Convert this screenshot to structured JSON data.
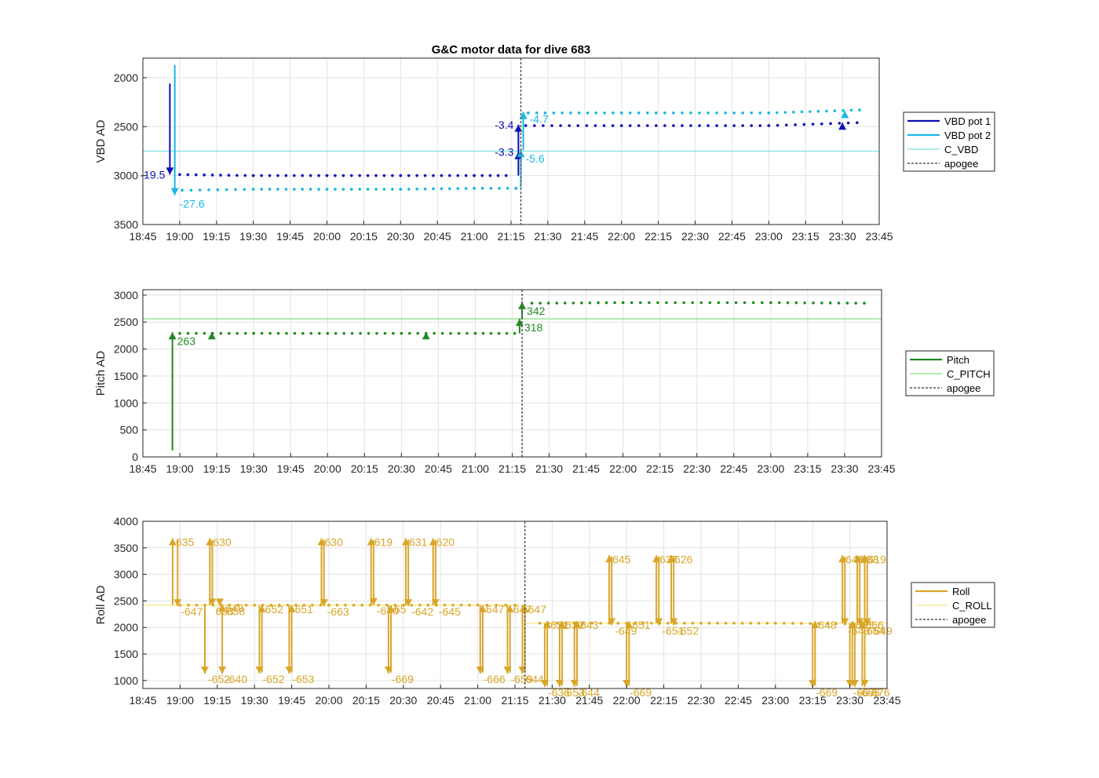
{
  "title": "G&C motor data for dive 683",
  "colors": {
    "vbd1": "#0d0fb3",
    "vbd2": "#1ab6e6",
    "c_vbd": "#7fe3e0",
    "pitch": "#1f8a1f",
    "c_pitch": "#7fe07f",
    "roll": "#d9a62a",
    "c_roll": "#f7e680",
    "apogee": "#555555",
    "grid": "#e3e3e3"
  },
  "x_ticks": [
    "18:45",
    "19:00",
    "19:15",
    "19:30",
    "19:45",
    "20:00",
    "20:15",
    "20:30",
    "20:45",
    "21:00",
    "21:15",
    "21:30",
    "21:45",
    "22:00",
    "22:15",
    "22:30",
    "22:45",
    "23:00",
    "23:15",
    "23:30",
    "23:45"
  ],
  "chart_data": [
    {
      "type": "line",
      "ylabel": "VBD AD",
      "xlim": [
        "18:45",
        "23:45"
      ],
      "ylim": [
        1800,
        3500
      ],
      "y_reversed": true,
      "yticks": [
        2000,
        2500,
        3000,
        3500
      ],
      "legend": [
        "VBD pot 1",
        "VBD pot 2",
        "C_VBD",
        "apogee"
      ],
      "legend_position": "outside-right",
      "apogee": "21:19",
      "c_vbd": 2750,
      "series": [
        {
          "name": "VBD pot 1",
          "color": "vbd1",
          "dots": [
            [
              "19:00",
              2990
            ],
            [
              "19:30",
              3000
            ],
            [
              "20:00",
              3000
            ],
            [
              "20:30",
              3000
            ],
            [
              "21:00",
              3000
            ],
            [
              "21:13",
              3000
            ],
            [
              "21:21",
              2490
            ],
            [
              "22:00",
              2490
            ],
            [
              "23:00",
              2490
            ],
            [
              "23:36",
              2460
            ]
          ]
        },
        {
          "name": "VBD pot 2",
          "color": "vbd2",
          "dots": [
            [
              "19:01",
              3150
            ],
            [
              "19:30",
              3140
            ],
            [
              "20:00",
              3140
            ],
            [
              "20:30",
              3140
            ],
            [
              "21:00",
              3130
            ],
            [
              "21:17",
              3130
            ],
            [
              "21:22",
              2360
            ],
            [
              "22:00",
              2360
            ],
            [
              "23:00",
              2360
            ],
            [
              "23:37",
              2330
            ]
          ]
        }
      ],
      "arrows": [
        {
          "series": "vbd1",
          "x": "18:56",
          "from": 2060,
          "to": 2990,
          "label": "-19.5",
          "label_side": "left"
        },
        {
          "series": "vbd2",
          "x": "18:58",
          "from": 1870,
          "to": 3200,
          "label": "-27.6",
          "label_side": "below-right"
        },
        {
          "series": "vbd1",
          "x": "21:18",
          "from": 3000,
          "to": 2760,
          "label": "-3.3",
          "label_side": "left"
        },
        {
          "series": "vbd1",
          "x": "21:18",
          "from": 2760,
          "to": 2480,
          "label": "-3.4",
          "label_side": "left"
        },
        {
          "series": "vbd2",
          "x": "21:19",
          "from": 3120,
          "to": 2740,
          "label": "-5.6",
          "label_side": "below-right"
        },
        {
          "series": "vbd2",
          "x": "21:20",
          "from": 2740,
          "to": 2350,
          "label": "-4.7",
          "label_side": "right"
        },
        {
          "series": "vbd1",
          "x": "23:30",
          "from": 2480,
          "to": 2460,
          "label": "",
          "label_side": "none"
        },
        {
          "series": "vbd2",
          "x": "23:31",
          "from": 2380,
          "to": 2340,
          "label": "",
          "label_side": "none"
        }
      ]
    },
    {
      "type": "line",
      "ylabel": "Pitch AD",
      "xlim": [
        "18:45",
        "23:45"
      ],
      "ylim": [
        0,
        3100
      ],
      "yticks": [
        0,
        500,
        1000,
        1500,
        2000,
        2500,
        3000
      ],
      "legend": [
        "Pitch",
        "C_PITCH",
        "apogee"
      ],
      "legend_position": "outside-right",
      "apogee": "21:19",
      "c_pitch": 2560,
      "series": [
        {
          "name": "Pitch",
          "color": "pitch",
          "dots": [
            [
              "19:00",
              2290
            ],
            [
              "19:30",
              2290
            ],
            [
              "20:00",
              2290
            ],
            [
              "20:30",
              2290
            ],
            [
              "21:00",
              2290
            ],
            [
              "21:16",
              2290
            ],
            [
              "21:23",
              2850
            ],
            [
              "22:00",
              2860
            ],
            [
              "23:00",
              2860
            ],
            [
              "23:38",
              2850
            ]
          ]
        }
      ],
      "arrows": [
        {
          "series": "pitch",
          "x": "18:57",
          "from": 120,
          "to": 2310,
          "label": "263",
          "label_side": "below-right"
        },
        {
          "series": "pitch",
          "x": "19:13",
          "from": 2280,
          "to": 2310,
          "label": "",
          "label_side": "none"
        },
        {
          "series": "pitch",
          "x": "20:40",
          "from": 2280,
          "to": 2310,
          "label": "",
          "label_side": "none"
        },
        {
          "series": "pitch",
          "x": "21:18",
          "from": 2290,
          "to": 2560,
          "label": "318",
          "label_side": "below-right"
        },
        {
          "series": "pitch",
          "x": "21:19",
          "from": 2560,
          "to": 2870,
          "label": "342",
          "label_side": "below-right"
        }
      ]
    },
    {
      "type": "line",
      "ylabel": "Roll AD",
      "xlim": [
        "18:45",
        "23:45"
      ],
      "ylim": [
        850,
        4000
      ],
      "yticks": [
        1000,
        1500,
        2000,
        2500,
        3000,
        3500,
        4000
      ],
      "legend": [
        "Roll",
        "C_ROLL",
        "apogee"
      ],
      "legend_position": "outside-right",
      "apogee": "21:19",
      "c_roll_segments": [
        [
          "18:45",
          "21:19",
          2420
        ],
        [
          "21:19",
          "23:45",
          2080
        ]
      ],
      "series": [
        {
          "name": "Roll",
          "color": "roll",
          "dots": [
            [
              "19:00",
              2420
            ],
            [
              "19:30",
              2420
            ],
            [
              "20:00",
              2420
            ],
            [
              "20:30",
              2420
            ],
            [
              "21:00",
              2420
            ],
            [
              "21:15",
              2420
            ],
            [
              "21:25",
              2080
            ],
            [
              "22:00",
              2080
            ],
            [
              "22:30",
              2080
            ],
            [
              "23:00",
              2080
            ],
            [
              "23:35",
              2070
            ]
          ]
        }
      ],
      "arrows": [
        {
          "x": "18:57",
          "from": 2420,
          "to": 3680,
          "label": "635"
        },
        {
          "x": "18:59",
          "from": 3650,
          "to": 2400,
          "label": "-647"
        },
        {
          "x": "19:10",
          "from": 2420,
          "to": 1130,
          "label": "-652"
        },
        {
          "x": "19:12",
          "from": 2420,
          "to": 3680,
          "label": "630"
        },
        {
          "x": "19:13",
          "from": 3650,
          "to": 2410,
          "label": "653"
        },
        {
          "x": "19:17",
          "from": 2420,
          "to": 1130,
          "label": "-640"
        },
        {
          "x": "19:17",
          "from": 2400,
          "to": 2440,
          "label": "648"
        },
        {
          "x": "19:16",
          "from": 2420,
          "to": 2410,
          "label": "-658"
        },
        {
          "x": "19:32",
          "from": 2420,
          "to": 1130,
          "label": "-652"
        },
        {
          "x": "19:33",
          "from": 1150,
          "to": 2420,
          "label": "652"
        },
        {
          "x": "19:44",
          "from": 2420,
          "to": 1130,
          "label": "-653"
        },
        {
          "x": "19:45",
          "from": 1150,
          "to": 2420,
          "label": "651"
        },
        {
          "x": "19:57",
          "from": 2420,
          "to": 3680,
          "label": "630"
        },
        {
          "x": "19:58",
          "from": 3650,
          "to": 2400,
          "label": "-663"
        },
        {
          "x": "20:17",
          "from": 2420,
          "to": 3680,
          "label": "619"
        },
        {
          "x": "20:18",
          "from": 3650,
          "to": 2420,
          "label": "-640"
        },
        {
          "x": "20:24",
          "from": 2420,
          "to": 1130,
          "label": "-669"
        },
        {
          "x": "20:25",
          "from": 1150,
          "to": 2420,
          "label": "65"
        },
        {
          "x": "20:31",
          "from": 2420,
          "to": 3680,
          "label": "631"
        },
        {
          "x": "20:32",
          "from": 3650,
          "to": 2400,
          "label": "-642"
        },
        {
          "x": "20:42",
          "from": 2420,
          "to": 3680,
          "label": "620"
        },
        {
          "x": "20:43",
          "from": 3650,
          "to": 2400,
          "label": "-645"
        },
        {
          "x": "21:01",
          "from": 2420,
          "to": 1130,
          "label": "-666"
        },
        {
          "x": "21:02",
          "from": 1150,
          "to": 2420,
          "label": "647"
        },
        {
          "x": "21:12",
          "from": 2420,
          "to": 1130,
          "label": "-659"
        },
        {
          "x": "21:13",
          "from": 1150,
          "to": 2420,
          "label": "647"
        },
        {
          "x": "21:18",
          "from": 2420,
          "to": 1130,
          "label": "644"
        },
        {
          "x": "21:19",
          "from": 1150,
          "to": 2420,
          "label": "647"
        },
        {
          "x": "21:27",
          "from": 2080,
          "to": 880,
          "label": "-635"
        },
        {
          "x": "21:28",
          "from": 900,
          "to": 2120,
          "label": "631"
        },
        {
          "x": "21:33",
          "from": 2080,
          "to": 880,
          "label": "-653"
        },
        {
          "x": "21:34",
          "from": 900,
          "to": 2120,
          "label": "639"
        },
        {
          "x": "21:39",
          "from": 2080,
          "to": 880,
          "label": "-644"
        },
        {
          "x": "21:40",
          "from": 900,
          "to": 2120,
          "label": "643"
        },
        {
          "x": "21:53",
          "from": 2080,
          "to": 3360,
          "label": "645"
        },
        {
          "x": "21:54",
          "from": 3340,
          "to": 2040,
          "label": "-649"
        },
        {
          "x": "22:00",
          "from": 2080,
          "to": 880,
          "label": "-669"
        },
        {
          "x": "22:01",
          "from": 900,
          "to": 2120,
          "label": "651"
        },
        {
          "x": "22:12",
          "from": 2080,
          "to": 3360,
          "label": "637"
        },
        {
          "x": "22:13",
          "from": 3340,
          "to": 2040,
          "label": "-651"
        },
        {
          "x": "22:18",
          "from": 2080,
          "to": 3360,
          "label": "626"
        },
        {
          "x": "22:19",
          "from": 3340,
          "to": 2040,
          "label": "-652"
        },
        {
          "x": "23:15",
          "from": 2080,
          "to": 880,
          "label": "-669"
        },
        {
          "x": "23:16",
          "from": 900,
          "to": 2120,
          "label": "648"
        },
        {
          "x": "23:27",
          "from": 2080,
          "to": 3360,
          "label": "649"
        },
        {
          "x": "23:28",
          "from": 3340,
          "to": 2040,
          "label": "-643"
        },
        {
          "x": "23:30",
          "from": 2080,
          "to": 880,
          "label": "-667"
        },
        {
          "x": "23:31",
          "from": 900,
          "to": 2120,
          "label": "655"
        },
        {
          "x": "23:32",
          "from": 2080,
          "to": 880,
          "label": "-656"
        },
        {
          "x": "23:33",
          "from": 2080,
          "to": 3360,
          "label": "638"
        },
        {
          "x": "23:34",
          "from": 3340,
          "to": 2040,
          "label": "-654"
        },
        {
          "x": "23:35",
          "from": 900,
          "to": 2120,
          "label": "656"
        },
        {
          "x": "23:36",
          "from": 2080,
          "to": 3360,
          "label": "619"
        },
        {
          "x": "23:37",
          "from": 3340,
          "to": 2040,
          "label": "-649"
        },
        {
          "x": "23:36",
          "from": 2080,
          "to": 880,
          "label": "-676"
        }
      ]
    }
  ]
}
